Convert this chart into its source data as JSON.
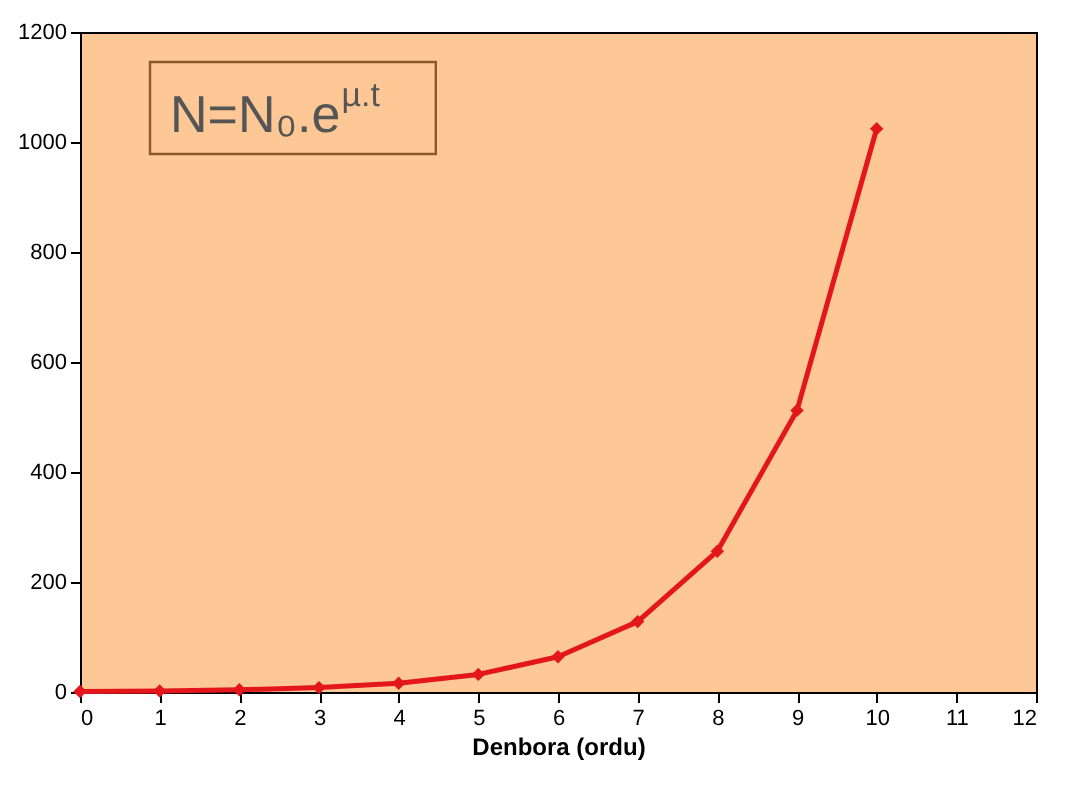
{
  "chart_data": {
    "type": "line",
    "x": [
      0,
      1,
      2,
      3,
      4,
      5,
      6,
      7,
      8,
      9,
      10
    ],
    "series": [
      {
        "color": "#e3171b",
        "values": [
          1,
          2,
          4,
          8,
          16,
          32,
          64,
          128,
          256,
          512,
          1024
        ]
      }
    ],
    "xlabel": "Denbora (ordu)",
    "xlim": [
      0,
      12
    ],
    "xticks": [
      0,
      1,
      2,
      3,
      4,
      5,
      6,
      7,
      8,
      9,
      10,
      11,
      12
    ],
    "ylim": [
      0,
      1200
    ],
    "yticks": [
      0,
      200,
      400,
      600,
      800,
      1000,
      1200
    ],
    "annotations": [
      "N=N₀.e$^{µ.t}$"
    ],
    "marker": "diamond",
    "line_style": "solid",
    "grid": false
  }
}
